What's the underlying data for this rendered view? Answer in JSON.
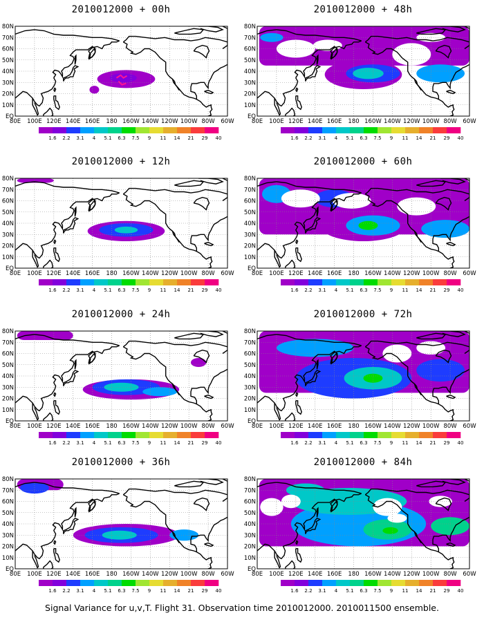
{
  "panels": [
    {
      "title": "2010012000 + 00h",
      "forecast_hour": 0
    },
    {
      "title": "2010012000 + 48h",
      "forecast_hour": 48
    },
    {
      "title": "2010012000 + 12h",
      "forecast_hour": 12
    },
    {
      "title": "2010012000 + 60h",
      "forecast_hour": 60
    },
    {
      "title": "2010012000 + 24h",
      "forecast_hour": 24
    },
    {
      "title": "2010012000 + 72h",
      "forecast_hour": 72
    },
    {
      "title": "2010012000 + 36h",
      "forecast_hour": 36
    },
    {
      "title": "2010012000 + 84h",
      "forecast_hour": 84
    }
  ],
  "axes": {
    "lon_labels": [
      "80E",
      "100E",
      "120E",
      "140E",
      "160E",
      "180",
      "160W",
      "140W",
      "120W",
      "100W",
      "80W",
      "60W"
    ],
    "lat_labels": [
      "EQ",
      "10N",
      "20N",
      "30N",
      "40N",
      "50N",
      "60N",
      "70N",
      "80N"
    ]
  },
  "colorbar": {
    "labels": [
      "1.6",
      "2.2",
      "3.1",
      "4",
      "5.1",
      "6.3",
      "7.5",
      "9",
      "11",
      "14",
      "21",
      "29",
      "40"
    ],
    "colors": [
      "#a000c8",
      "#8200dc",
      "#1e3cff",
      "#00a0ff",
      "#00c8c8",
      "#00d28c",
      "#00dc00",
      "#a0e632",
      "#e6dc32",
      "#e6af2d",
      "#f08228",
      "#fa3c3c",
      "#f00082"
    ]
  },
  "caption": "Signal Variance for u,v,T. Flight 31. Observation time 2010012000. 2010011500 ensemble."
}
